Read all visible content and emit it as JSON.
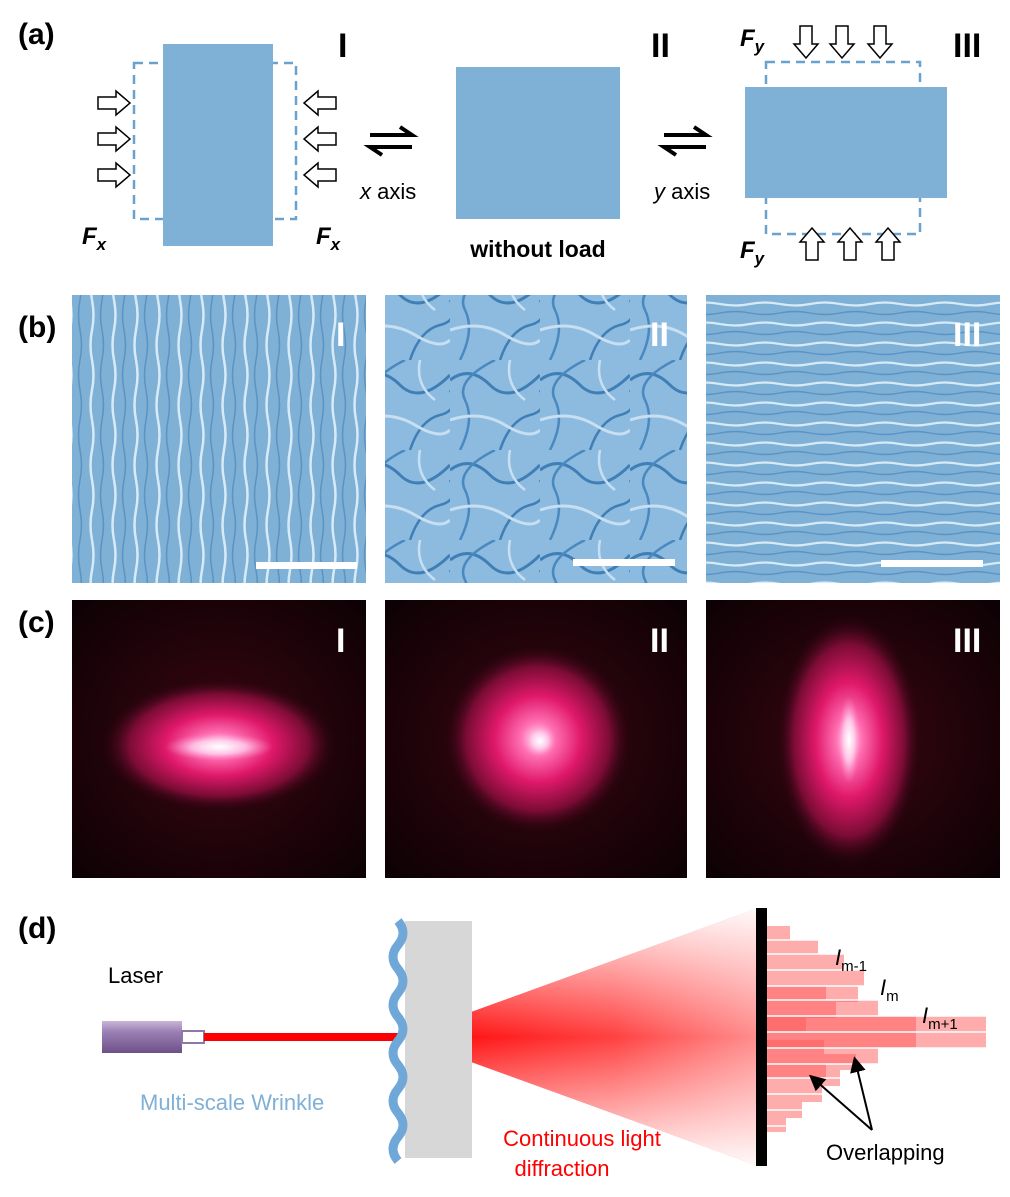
{
  "panel_labels": {
    "a": "(a)",
    "b": "(b)",
    "c": "(c)",
    "d": "(d)"
  },
  "roman": {
    "one": "I",
    "two": "II",
    "three": "III"
  },
  "panel_a": {
    "force_x": "F",
    "force_x_sub": "x",
    "force_y": "F",
    "force_y_sub": "y",
    "x_axis_italic": "x",
    "x_axis_rest": " axis",
    "y_axis_italic": "y",
    "y_axis_rest": " axis",
    "without_load": "without load"
  },
  "panel_d": {
    "laser": "Laser",
    "wrinkle": "Multi-scale Wrinkle",
    "diffraction_line1": "Continuous light",
    "diffraction_line2": "diffraction",
    "overlapping": "Overlapping",
    "intensity_symbol": "I",
    "sub_m_minus_1": "m-1",
    "sub_m": "m",
    "sub_m_plus_1": "m+1"
  },
  "colors": {
    "sample_blue": "#7fb0d6",
    "laser_red": "#ff0000",
    "wrinkle_blue": "#6fa8d8",
    "dashed_blue": "#6aa2cf"
  }
}
